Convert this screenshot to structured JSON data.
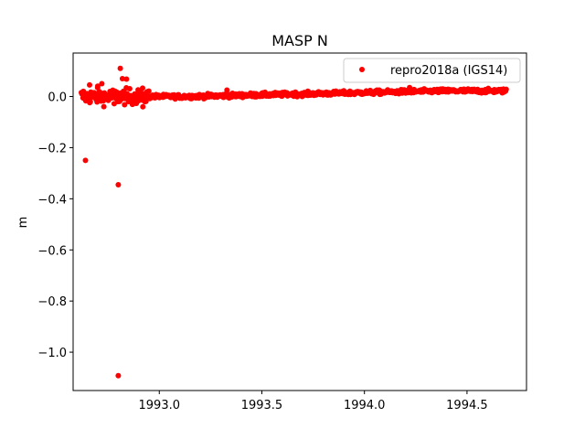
{
  "chart_data": {
    "type": "scatter",
    "title": "MASP N",
    "xlabel": "",
    "ylabel": "m",
    "xlim": [
      1992.58,
      1994.79
    ],
    "ylim": [
      -1.15,
      0.17
    ],
    "xticks": [
      1993.0,
      1993.5,
      1994.0,
      1994.5
    ],
    "xtick_labels": [
      "1993.0",
      "1993.5",
      "1994.0",
      "1994.5"
    ],
    "yticks": [
      0.0,
      -0.2,
      -0.4,
      -0.6,
      -0.8,
      -1.0
    ],
    "ytick_labels": [
      "0.0",
      "−0.2",
      "−0.4",
      "−0.6",
      "−0.8",
      "−1.0"
    ],
    "legend_position": "top-right",
    "grid": false,
    "series": [
      {
        "name": "repro2018a (IGS14)",
        "color": "#ff0000",
        "marker": "circle",
        "x_start": 1992.62,
        "x_end": 1994.69,
        "trend_start": 0.0,
        "trend_end": 0.022,
        "scatter_early": 0.015,
        "scatter_late": 0.004,
        "outliers": [
          {
            "x": 1992.64,
            "y": -0.25
          },
          {
            "x": 1992.8,
            "y": -0.345
          },
          {
            "x": 1992.8,
            "y": -1.092
          },
          {
            "x": 1992.81,
            "y": 0.11
          },
          {
            "x": 1992.82,
            "y": 0.07
          },
          {
            "x": 1992.84,
            "y": 0.068
          },
          {
            "x": 1992.66,
            "y": 0.045
          },
          {
            "x": 1992.72,
            "y": 0.05
          },
          {
            "x": 1992.7,
            "y": 0.04
          },
          {
            "x": 1992.78,
            "y": -0.028
          },
          {
            "x": 1992.85,
            "y": -0.02
          },
          {
            "x": 1992.92,
            "y": -0.04
          },
          {
            "x": 1992.9,
            "y": 0.02
          },
          {
            "x": 1992.63,
            "y": 0.02
          },
          {
            "x": 1993.33,
            "y": 0.025
          },
          {
            "x": 1994.22,
            "y": 0.035
          }
        ]
      }
    ]
  }
}
